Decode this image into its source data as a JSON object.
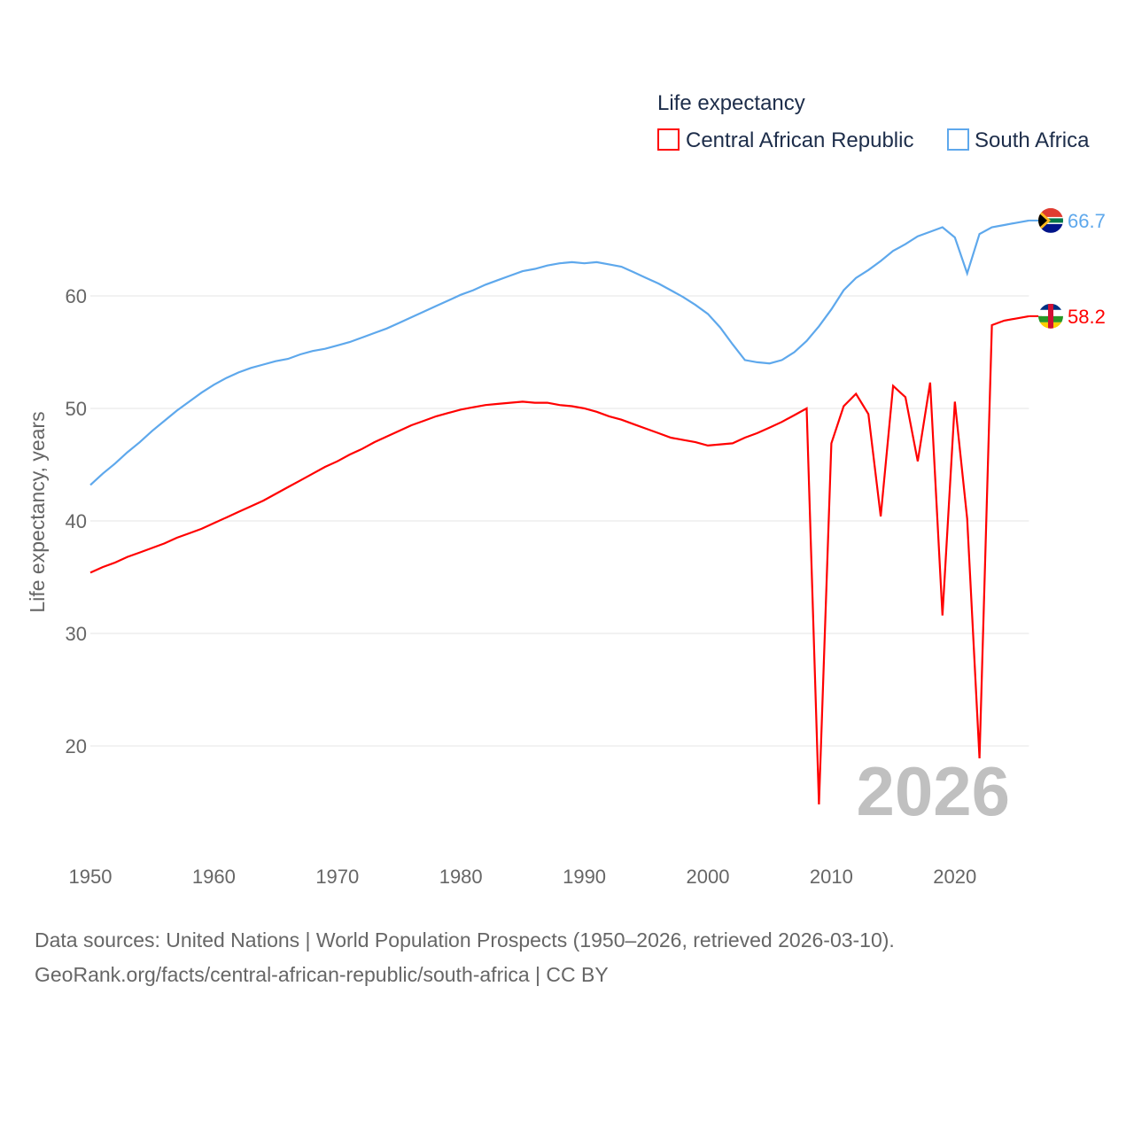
{
  "chart_data": {
    "type": "line",
    "legend_title": "Life expectancy",
    "legend_position": "top-right",
    "ylabel": "Life expectancy, years",
    "xlabel": "",
    "xlim": [
      1950,
      2026
    ],
    "ylim": [
      10,
      70
    ],
    "yticks": [
      20,
      30,
      40,
      50,
      60
    ],
    "xticks": [
      1950,
      1960,
      1970,
      1980,
      1990,
      2000,
      2010,
      2020
    ],
    "grid": true,
    "year_watermark": "2026",
    "x_start": 1950,
    "series": [
      {
        "name": "Central African Republic",
        "color": "#ff0000",
        "end_label": "58.2",
        "values": [
          35.4,
          35.9,
          36.3,
          36.8,
          37.2,
          37.6,
          38.0,
          38.5,
          38.9,
          39.3,
          39.8,
          40.3,
          40.8,
          41.3,
          41.8,
          42.4,
          43.0,
          43.6,
          44.2,
          44.8,
          45.3,
          45.9,
          46.4,
          47.0,
          47.5,
          48.0,
          48.5,
          48.9,
          49.3,
          49.6,
          49.9,
          50.1,
          50.3,
          50.4,
          50.5,
          50.6,
          50.5,
          50.5,
          50.3,
          50.2,
          50.0,
          49.7,
          49.3,
          49.0,
          48.6,
          48.2,
          47.8,
          47.4,
          47.2,
          47.0,
          46.7,
          46.8,
          46.9,
          47.4,
          47.8,
          48.3,
          48.8,
          49.4,
          50.0,
          14.8,
          46.9,
          50.2,
          51.3,
          49.5,
          40.4,
          52.0,
          51.0,
          45.3,
          52.3,
          31.6,
          50.6,
          40.2,
          18.9,
          57.4,
          57.8,
          58.0,
          58.2
        ]
      },
      {
        "name": "South Africa",
        "color": "#5ea8ec",
        "end_label": "66.7",
        "values": [
          43.2,
          44.2,
          45.1,
          46.1,
          47.0,
          48.0,
          48.9,
          49.8,
          50.6,
          51.4,
          52.1,
          52.7,
          53.2,
          53.6,
          53.9,
          54.2,
          54.4,
          54.8,
          55.1,
          55.3,
          55.6,
          55.9,
          56.3,
          56.7,
          57.1,
          57.6,
          58.1,
          58.6,
          59.1,
          59.6,
          60.1,
          60.5,
          61.0,
          61.4,
          61.8,
          62.2,
          62.4,
          62.7,
          62.9,
          63.0,
          62.9,
          63.0,
          62.8,
          62.6,
          62.1,
          61.6,
          61.1,
          60.5,
          59.9,
          59.2,
          58.4,
          57.2,
          55.7,
          54.3,
          54.1,
          54.0,
          54.3,
          55.0,
          56.0,
          57.3,
          58.8,
          60.5,
          61.6,
          62.3,
          63.1,
          64.0,
          64.6,
          65.3,
          65.7,
          66.1,
          65.2,
          62.0,
          65.5,
          66.1,
          66.3,
          66.5,
          66.7
        ]
      }
    ],
    "source_line1": "Data sources: United Nations | World Population Prospects (1950–2026, retrieved 2026-03-10).",
    "source_line2": "GeoRank.org/facts/central-african-republic/south-africa | CC BY"
  }
}
